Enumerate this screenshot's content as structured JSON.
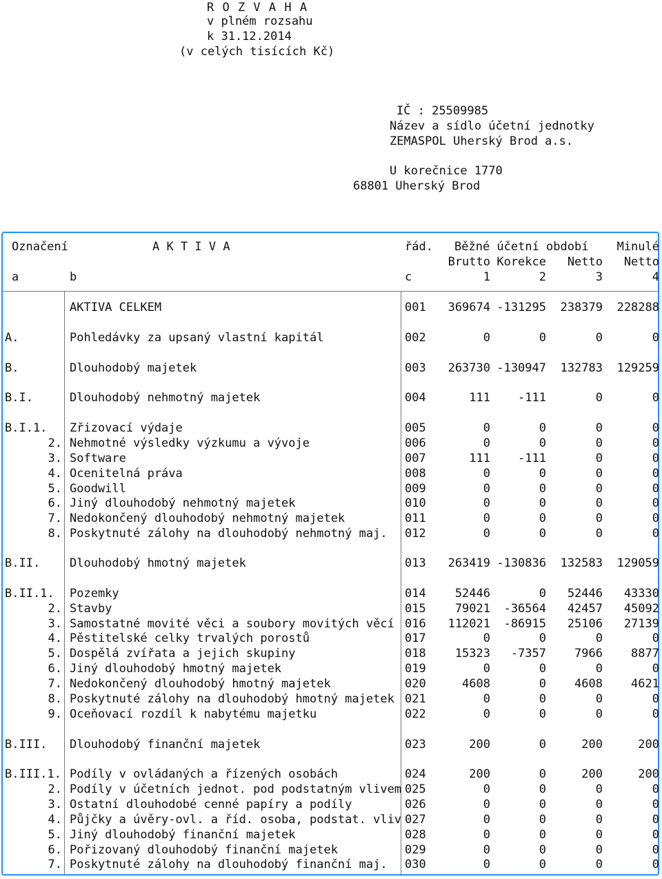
{
  "header": {
    "title": "R O Z V A H A",
    "line2": "v plném rozsahu",
    "line3": "k 31.12.2014",
    "line4": "(v celých tisících Kč)"
  },
  "entity": {
    "ic": "IČ : 25509985",
    "name_label": "Název a sídlo účetní jednotky",
    "name": "ZEMASPOL Uherský Brod a.s.",
    "street": "U korečnice 1770",
    "city": "68801 Uherský Brod"
  },
  "columns": {
    "oznaceni": "Označení",
    "aktiva": "A K T I V A",
    "rad": "řád.",
    "bezne": "Běžné účetní období",
    "minule": "Minulé",
    "brutto": "Brutto",
    "korekce": "Korekce",
    "netto": "Netto",
    "netto_prev": "Netto",
    "a": "a",
    "b": "b",
    "c": "c",
    "n1": "1",
    "n2": "2",
    "n3": "3",
    "n4": "4"
  },
  "rows": [
    {
      "label": "",
      "text": "AKTIVA CELKEM",
      "ord": "001",
      "brutto": "369674",
      "korekce": "-131295",
      "netto": "238379",
      "prev": "228288"
    },
    {
      "label": "A.",
      "text": "Pohledávky za upsaný vlastní kapitál",
      "ord": "002",
      "brutto": "0",
      "korekce": "0",
      "netto": "0",
      "prev": "0"
    },
    {
      "label": "B.",
      "text": "Dlouhodobý majetek",
      "ord": "003",
      "brutto": "263730",
      "korekce": "-130947",
      "netto": "132783",
      "prev": "129259"
    },
    {
      "label": "B.I.",
      "text": "Dlouhodobý nehmotný majetek",
      "ord": "004",
      "brutto": "111",
      "korekce": "-111",
      "netto": "0",
      "prev": "0"
    },
    {
      "label": "B.I.1.",
      "text": "Zřizovací výdaje",
      "ord": "005",
      "brutto": "0",
      "korekce": "0",
      "netto": "0",
      "prev": "0"
    },
    {
      "label": "2.",
      "text": "Nehmotné výsledky výzkumu a vývoje",
      "ord": "006",
      "brutto": "0",
      "korekce": "0",
      "netto": "0",
      "prev": "0"
    },
    {
      "label": "3.",
      "text": "Software",
      "ord": "007",
      "brutto": "111",
      "korekce": "-111",
      "netto": "0",
      "prev": "0"
    },
    {
      "label": "4.",
      "text": "Ocenitelná práva",
      "ord": "008",
      "brutto": "0",
      "korekce": "0",
      "netto": "0",
      "prev": "0"
    },
    {
      "label": "5.",
      "text": "Goodwill",
      "ord": "009",
      "brutto": "0",
      "korekce": "0",
      "netto": "0",
      "prev": "0"
    },
    {
      "label": "6.",
      "text": "Jiný dlouhodobý nehmotný majetek",
      "ord": "010",
      "brutto": "0",
      "korekce": "0",
      "netto": "0",
      "prev": "0"
    },
    {
      "label": "7.",
      "text": "Nedokončený dlouhodobý nehmotný majetek",
      "ord": "011",
      "brutto": "0",
      "korekce": "0",
      "netto": "0",
      "prev": "0"
    },
    {
      "label": "8.",
      "text": "Poskytnuté zálohy na dlouhodobý nehmotný maj.",
      "ord": "012",
      "brutto": "0",
      "korekce": "0",
      "netto": "0",
      "prev": "0"
    },
    {
      "label": "B.II.",
      "text": "Dlouhodobý hmotný majetek",
      "ord": "013",
      "brutto": "263419",
      "korekce": "-130836",
      "netto": "132583",
      "prev": "129059"
    },
    {
      "label": "B.II.1.",
      "text": "Pozemky",
      "ord": "014",
      "brutto": "52446",
      "korekce": "0",
      "netto": "52446",
      "prev": "43330"
    },
    {
      "label": "2.",
      "text": "Stavby",
      "ord": "015",
      "brutto": "79021",
      "korekce": "-36564",
      "netto": "42457",
      "prev": "45092"
    },
    {
      "label": "3.",
      "text": "Samostatné movité věci a soubory movitých věcí",
      "ord": "016",
      "brutto": "112021",
      "korekce": "-86915",
      "netto": "25106",
      "prev": "27139"
    },
    {
      "label": "4.",
      "text": "Pěstitelské celky trvalých porostů",
      "ord": "017",
      "brutto": "0",
      "korekce": "0",
      "netto": "0",
      "prev": "0"
    },
    {
      "label": "5.",
      "text": "Dospělá zvířata a jejich skupiny",
      "ord": "018",
      "brutto": "15323",
      "korekce": "-7357",
      "netto": "7966",
      "prev": "8877"
    },
    {
      "label": "6.",
      "text": "Jiný dlouhodobý hmotný majetek",
      "ord": "019",
      "brutto": "0",
      "korekce": "0",
      "netto": "0",
      "prev": "0"
    },
    {
      "label": "7.",
      "text": "Nedokončený dlouhodobý hmotný majetek",
      "ord": "020",
      "brutto": "4608",
      "korekce": "0",
      "netto": "4608",
      "prev": "4621"
    },
    {
      "label": "8.",
      "text": "Poskytnuté zálohy na dlouhodobý hmotný majetek",
      "ord": "021",
      "brutto": "0",
      "korekce": "0",
      "netto": "0",
      "prev": "0"
    },
    {
      "label": "9.",
      "text": "Oceňovací rozdíl k nabytému majetku",
      "ord": "022",
      "brutto": "0",
      "korekce": "0",
      "netto": "0",
      "prev": "0"
    },
    {
      "label": "B.III.",
      "text": "Dlouhodobý finanční majetek",
      "ord": "023",
      "brutto": "200",
      "korekce": "0",
      "netto": "200",
      "prev": "200"
    },
    {
      "label": "B.III.1.",
      "text": "Podíly v ovládaných a řízených osobách",
      "ord": "024",
      "brutto": "200",
      "korekce": "0",
      "netto": "200",
      "prev": "200"
    },
    {
      "label": "2.",
      "text": "Podíly v účetních jednot. pod podstatným vlivem",
      "ord": "025",
      "brutto": "0",
      "korekce": "0",
      "netto": "0",
      "prev": "0"
    },
    {
      "label": "3.",
      "text": "Ostatní dlouhodobé cenné papíry a podíly",
      "ord": "026",
      "brutto": "0",
      "korekce": "0",
      "netto": "0",
      "prev": "0"
    },
    {
      "label": "4.",
      "text": "Půjčky a úvěry-ovl. a říd. osoba, podstat. vliv",
      "ord": "027",
      "brutto": "0",
      "korekce": "0",
      "netto": "0",
      "prev": "0"
    },
    {
      "label": "5.",
      "text": "Jiný dlouhodobý finanční majetek",
      "ord": "028",
      "brutto": "0",
      "korekce": "0",
      "netto": "0",
      "prev": "0"
    },
    {
      "label": "6.",
      "text": "Pořizovaný dlouhodobý finanční majetek",
      "ord": "029",
      "brutto": "0",
      "korekce": "0",
      "netto": "0",
      "prev": "0"
    },
    {
      "label": "7.",
      "text": "Poskytnuté zálohy na dlouhodobý finanční maj.",
      "ord": "030",
      "brutto": "0",
      "korekce": "0",
      "netto": "0",
      "prev": "0"
    }
  ]
}
